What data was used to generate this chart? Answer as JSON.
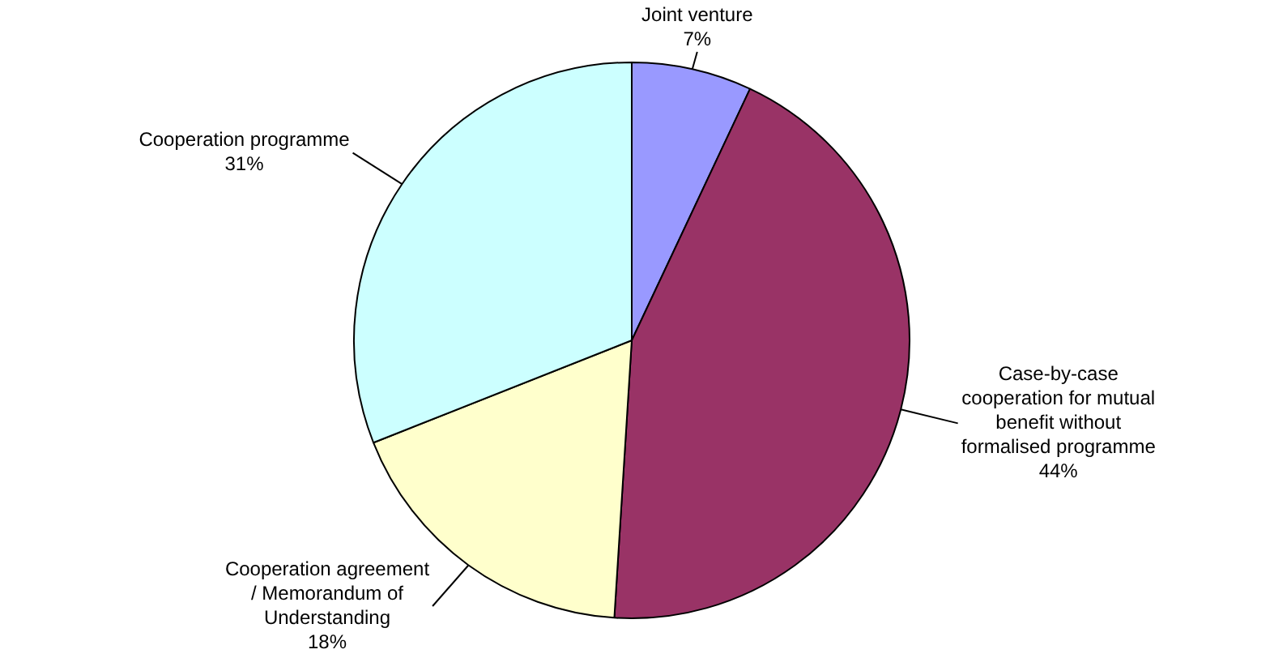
{
  "chart_data": {
    "type": "pie",
    "categories": [
      "Joint venture",
      "Case-by-case cooperation for mutual benefit without formalised programme",
      "Cooperation agreement / Memorandum of Understanding",
      "Cooperation programme"
    ],
    "values": [
      7,
      44,
      18,
      31
    ],
    "value_labels": [
      "7%",
      "44%",
      "18%",
      "31%"
    ],
    "colors": [
      "#9999ff",
      "#993366",
      "#ffffcc",
      "#ccffff"
    ],
    "legend": false
  }
}
